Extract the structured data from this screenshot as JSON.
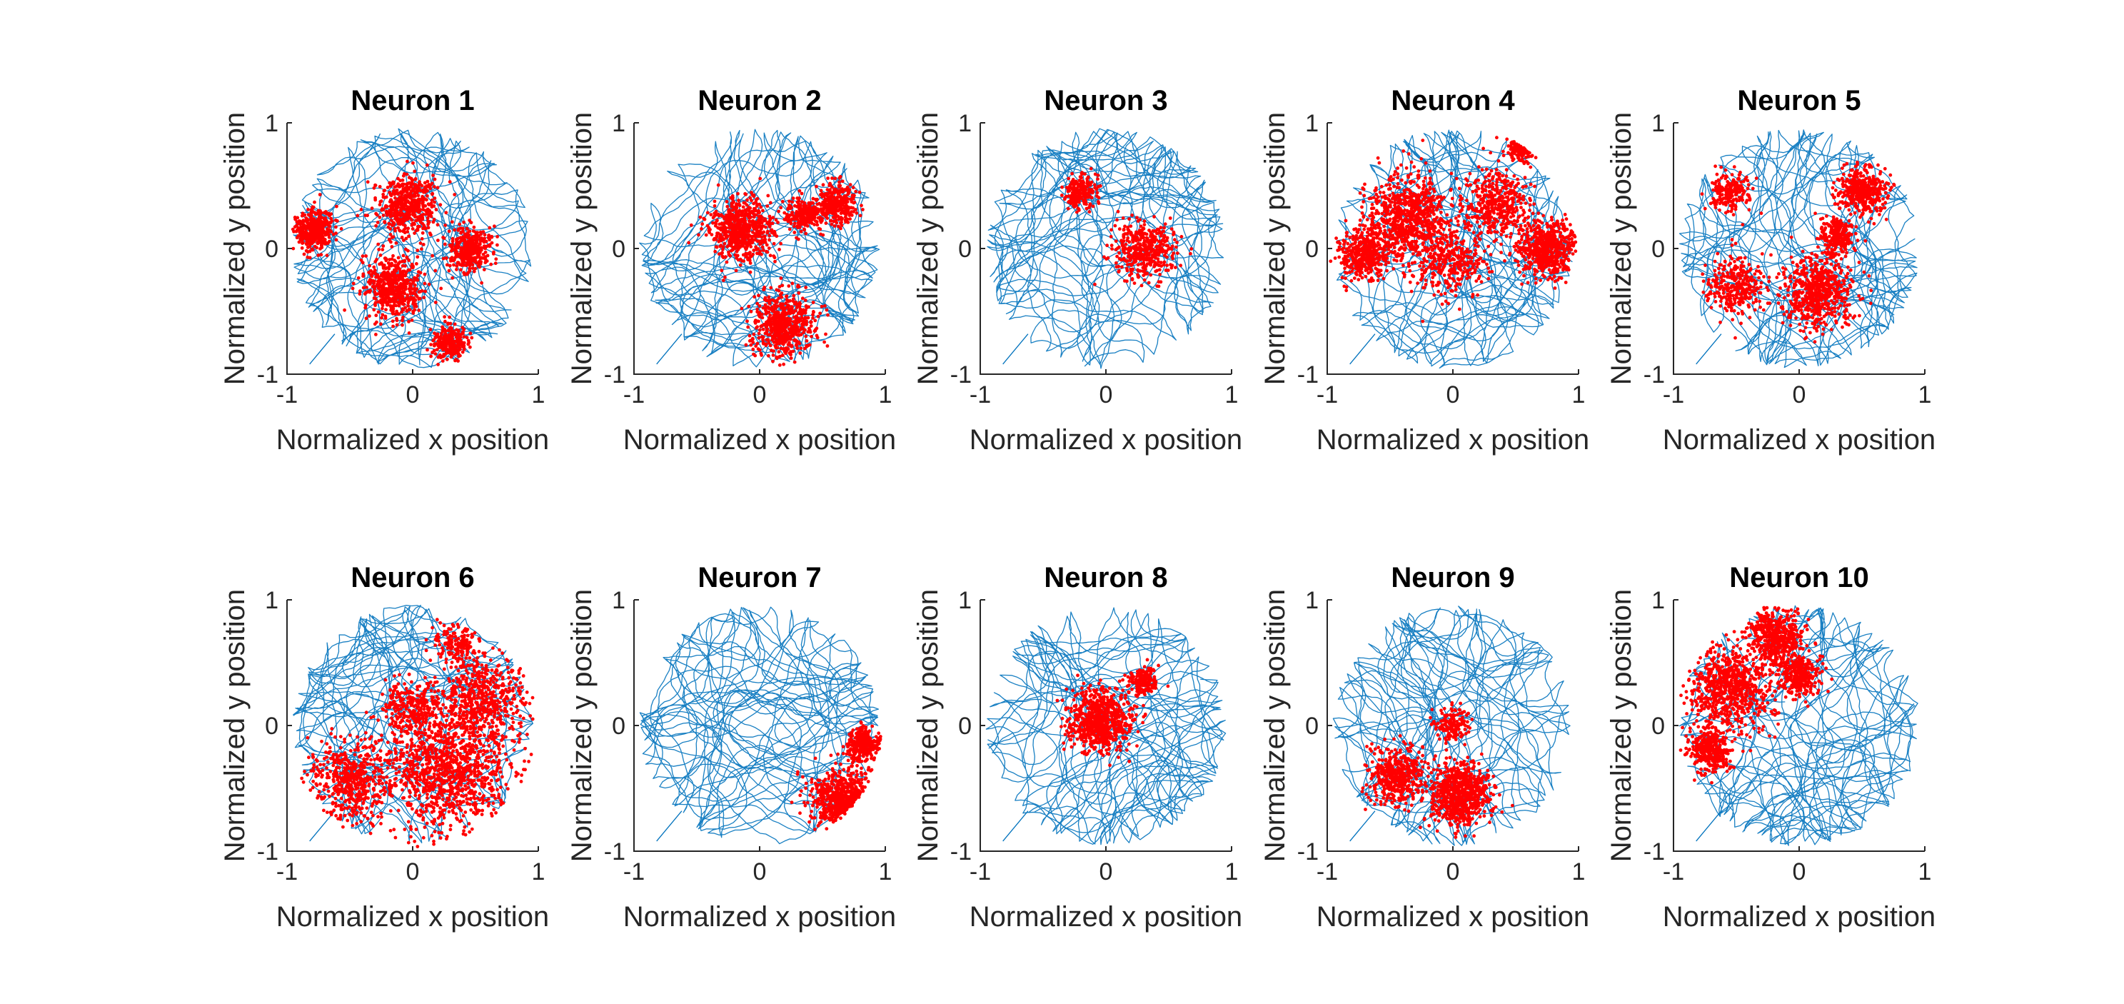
{
  "figure": {
    "background": "#ffffff"
  },
  "chart_data": [
    {
      "type": "scatter",
      "title": "Neuron 1",
      "xlabel": "Normalized x position",
      "ylabel": "Normalized y position",
      "xlim": [
        -1,
        1
      ],
      "ylim": [
        -1,
        1
      ],
      "xticks": [
        "-1",
        "0",
        "1"
      ],
      "yticks": [
        "-1",
        "0",
        "1"
      ],
      "grid": false,
      "series": [
        {
          "name": "",
          "kind": "trajectory",
          "color": "#0072BD"
        },
        {
          "name": "",
          "kind": "spikes",
          "color": "#FF0000",
          "clusters": [
            {
              "cx": -0.05,
              "cy": 0.35,
              "r": 0.22,
              "density": 1
            },
            {
              "cx": -0.78,
              "cy": 0.15,
              "r": 0.14,
              "density": 0.8
            },
            {
              "cx": -0.15,
              "cy": -0.3,
              "r": 0.22,
              "density": 1
            },
            {
              "cx": 0.45,
              "cy": 0.0,
              "r": 0.15,
              "density": 0.7
            },
            {
              "cx": 0.3,
              "cy": -0.75,
              "r": 0.12,
              "density": 0.5
            }
          ]
        }
      ]
    },
    {
      "type": "scatter",
      "title": "Neuron 2",
      "xlabel": "Normalized x position",
      "ylabel": "Normalized y position",
      "xlim": [
        -1,
        1
      ],
      "ylim": [
        -1,
        1
      ],
      "xticks": [
        "-1",
        "0",
        "1"
      ],
      "yticks": [
        "-1",
        "0",
        "1"
      ],
      "grid": false,
      "series": [
        {
          "name": "",
          "kind": "trajectory",
          "color": "#0072BD"
        },
        {
          "name": "",
          "kind": "spikes",
          "color": "#FF0000",
          "clusters": [
            {
              "cx": -0.15,
              "cy": 0.15,
              "r": 0.22,
              "density": 1.2
            },
            {
              "cx": 0.2,
              "cy": -0.6,
              "r": 0.22,
              "density": 1.2
            },
            {
              "cx": 0.6,
              "cy": 0.35,
              "r": 0.14,
              "density": 0.6
            },
            {
              "cx": 0.35,
              "cy": 0.25,
              "r": 0.12,
              "density": 0.4
            }
          ]
        }
      ]
    },
    {
      "type": "scatter",
      "title": "Neuron 3",
      "xlabel": "Normalized x position",
      "ylabel": "Normalized y position",
      "xlim": [
        -1,
        1
      ],
      "ylim": [
        -1,
        1
      ],
      "xticks": [
        "-1",
        "0",
        "1"
      ],
      "yticks": [
        "-1",
        "0",
        "1"
      ],
      "grid": false,
      "series": [
        {
          "name": "",
          "kind": "trajectory",
          "color": "#0072BD"
        },
        {
          "name": "",
          "kind": "spikes",
          "color": "#FF0000",
          "clusters": [
            {
              "cx": 0.3,
              "cy": 0.0,
              "r": 0.22,
              "density": 0.8
            },
            {
              "cx": -0.2,
              "cy": 0.45,
              "r": 0.12,
              "density": 0.4
            }
          ]
        }
      ]
    },
    {
      "type": "scatter",
      "title": "Neuron 4",
      "xlabel": "Normalized x position",
      "ylabel": "Normalized y position",
      "xlim": [
        -1,
        1
      ],
      "ylim": [
        -1,
        1
      ],
      "xticks": [
        "-1",
        "0",
        "1"
      ],
      "yticks": [
        "-1",
        "0",
        "1"
      ],
      "grid": false,
      "series": [
        {
          "name": "",
          "kind": "trajectory",
          "color": "#0072BD"
        },
        {
          "name": "",
          "kind": "spikes",
          "color": "#FF0000",
          "clusters": [
            {
              "cx": -0.35,
              "cy": 0.25,
              "r": 0.3,
              "density": 1.6
            },
            {
              "cx": 0.75,
              "cy": 0.0,
              "r": 0.2,
              "density": 1.2
            },
            {
              "cx": 0.35,
              "cy": 0.35,
              "r": 0.25,
              "density": 0.8
            },
            {
              "cx": -0.7,
              "cy": -0.05,
              "r": 0.18,
              "density": 0.8
            },
            {
              "cx": 0.0,
              "cy": -0.1,
              "r": 0.25,
              "density": 0.6
            },
            {
              "cx": 0.55,
              "cy": 0.8,
              "r": 0.1,
              "density": 0.4
            }
          ]
        }
      ]
    },
    {
      "type": "scatter",
      "title": "Neuron 5",
      "xlabel": "Normalized x position",
      "ylabel": "Normalized y position",
      "xlim": [
        -1,
        1
      ],
      "ylim": [
        -1,
        1
      ],
      "xticks": [
        "-1",
        "0",
        "1"
      ],
      "yticks": [
        "-1",
        "0",
        "1"
      ],
      "grid": false,
      "series": [
        {
          "name": "",
          "kind": "trajectory",
          "color": "#0072BD"
        },
        {
          "name": "",
          "kind": "spikes",
          "color": "#FF0000",
          "clusters": [
            {
              "cx": 0.15,
              "cy": -0.35,
              "r": 0.25,
              "density": 1.2
            },
            {
              "cx": 0.5,
              "cy": 0.45,
              "r": 0.18,
              "density": 0.8
            },
            {
              "cx": -0.5,
              "cy": -0.3,
              "r": 0.2,
              "density": 0.6
            },
            {
              "cx": -0.55,
              "cy": 0.45,
              "r": 0.15,
              "density": 0.4
            },
            {
              "cx": 0.3,
              "cy": 0.1,
              "r": 0.12,
              "density": 0.5
            }
          ]
        }
      ]
    },
    {
      "type": "scatter",
      "title": "Neuron 6",
      "xlabel": "Normalized x position",
      "ylabel": "Normalized y position",
      "xlim": [
        -1,
        1
      ],
      "ylim": [
        -1,
        1
      ],
      "xticks": [
        "-1",
        "0",
        "1"
      ],
      "yticks": [
        "-1",
        "0",
        "1"
      ],
      "grid": false,
      "series": [
        {
          "name": "",
          "kind": "trajectory",
          "color": "#0072BD"
        },
        {
          "name": "",
          "kind": "spikes",
          "color": "#FF0000",
          "clusters": [
            {
              "cx": 0.3,
              "cy": -0.35,
              "r": 0.45,
              "density": 2.2
            },
            {
              "cx": 0.55,
              "cy": 0.2,
              "r": 0.3,
              "density": 1.0
            },
            {
              "cx": -0.5,
              "cy": -0.45,
              "r": 0.3,
              "density": 1.0
            },
            {
              "cx": 0.0,
              "cy": 0.15,
              "r": 0.2,
              "density": 0.5
            },
            {
              "cx": 0.35,
              "cy": 0.65,
              "r": 0.15,
              "density": 0.3
            }
          ]
        }
      ]
    },
    {
      "type": "scatter",
      "title": "Neuron 7",
      "xlabel": "Normalized x position",
      "ylabel": "Normalized y position",
      "xlim": [
        -1,
        1
      ],
      "ylim": [
        -1,
        1
      ],
      "xticks": [
        "-1",
        "0",
        "1"
      ],
      "yticks": [
        "-1",
        "0",
        "1"
      ],
      "grid": false,
      "series": [
        {
          "name": "",
          "kind": "trajectory",
          "color": "#0072BD"
        },
        {
          "name": "",
          "kind": "spikes",
          "color": "#FF0000",
          "clusters": [
            {
              "cx": 0.65,
              "cy": -0.6,
              "r": 0.22,
              "density": 1.3
            },
            {
              "cx": 0.82,
              "cy": -0.15,
              "r": 0.12,
              "density": 0.6
            }
          ]
        }
      ]
    },
    {
      "type": "scatter",
      "title": "Neuron 8",
      "xlabel": "Normalized x position",
      "ylabel": "Normalized y position",
      "xlim": [
        -1,
        1
      ],
      "ylim": [
        -1,
        1
      ],
      "xticks": [
        "-1",
        "0",
        "1"
      ],
      "yticks": [
        "-1",
        "0",
        "1"
      ],
      "grid": false,
      "series": [
        {
          "name": "",
          "kind": "trajectory",
          "color": "#0072BD"
        },
        {
          "name": "",
          "kind": "spikes",
          "color": "#FF0000",
          "clusters": [
            {
              "cx": -0.05,
              "cy": 0.05,
              "r": 0.22,
              "density": 1.4
            },
            {
              "cx": 0.3,
              "cy": 0.35,
              "r": 0.1,
              "density": 0.3
            }
          ]
        }
      ]
    },
    {
      "type": "scatter",
      "title": "Neuron 9",
      "xlabel": "Normalized x position",
      "ylabel": "Normalized y position",
      "xlim": [
        -1,
        1
      ],
      "ylim": [
        -1,
        1
      ],
      "xticks": [
        "-1",
        "0",
        "1"
      ],
      "yticks": [
        "-1",
        "0",
        "1"
      ],
      "grid": false,
      "series": [
        {
          "name": "",
          "kind": "trajectory",
          "color": "#0072BD"
        },
        {
          "name": "",
          "kind": "spikes",
          "color": "#FF0000",
          "clusters": [
            {
              "cx": 0.05,
              "cy": -0.55,
              "r": 0.22,
              "density": 1.4
            },
            {
              "cx": -0.45,
              "cy": -0.4,
              "r": 0.2,
              "density": 0.9
            },
            {
              "cx": 0.0,
              "cy": 0.0,
              "r": 0.12,
              "density": 0.3
            }
          ]
        }
      ]
    },
    {
      "type": "scatter",
      "title": "Neuron 10",
      "xlabel": "Normalized x position",
      "ylabel": "Normalized y position",
      "xlim": [
        -1,
        1
      ],
      "ylim": [
        -1,
        1
      ],
      "xticks": [
        "-1",
        "0",
        "1"
      ],
      "yticks": [
        "-1",
        "0",
        "1"
      ],
      "grid": false,
      "series": [
        {
          "name": "",
          "kind": "trajectory",
          "color": "#0072BD"
        },
        {
          "name": "",
          "kind": "spikes",
          "color": "#FF0000",
          "clusters": [
            {
              "cx": -0.55,
              "cy": 0.3,
              "r": 0.3,
              "density": 1.5
            },
            {
              "cx": -0.2,
              "cy": 0.7,
              "r": 0.2,
              "density": 1.0
            },
            {
              "cx": -0.7,
              "cy": -0.2,
              "r": 0.15,
              "density": 0.7
            },
            {
              "cx": 0.0,
              "cy": 0.4,
              "r": 0.15,
              "density": 0.6
            }
          ]
        }
      ]
    }
  ]
}
